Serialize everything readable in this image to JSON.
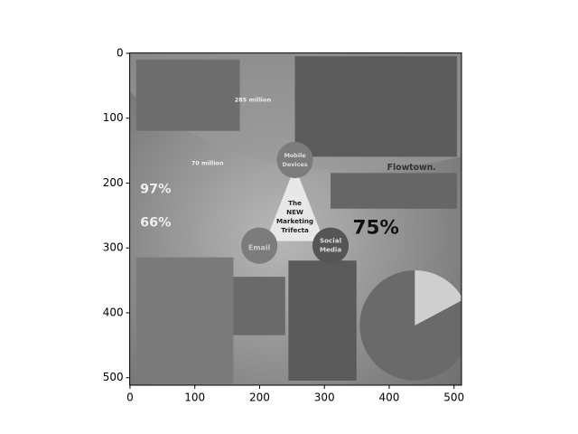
{
  "chart_data": {
    "type": "image",
    "xlim": [
      -0.5,
      511.5
    ],
    "ylim": [
      511.5,
      -0.5
    ],
    "xticks": [
      0,
      100,
      200,
      300,
      400,
      500
    ],
    "yticks": [
      0,
      100,
      200,
      300,
      400,
      500
    ],
    "image_texts": [
      "285 million",
      "70 million",
      "97%",
      "66%",
      "Mobile",
      "Devices",
      "The",
      "NEW",
      "Marketing",
      "Trifecta",
      "Email",
      "Social",
      "Media",
      "75%",
      "Flowtown."
    ]
  }
}
